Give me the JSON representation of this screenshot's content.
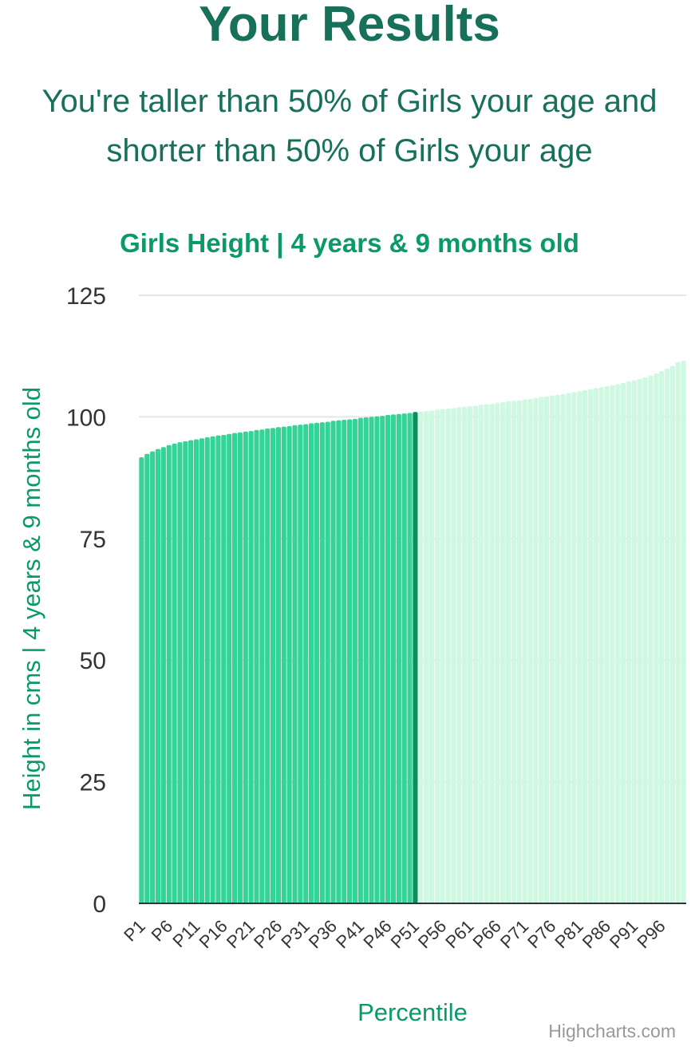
{
  "header": {
    "title": "Your Results",
    "summary": "You're taller than 50% of Girls your age and shorter than 50% of Girls your age"
  },
  "colors": {
    "title": "#17705a",
    "accent": "#0a9a6a",
    "below": "#35d398",
    "selected": "#0a8f5c",
    "above": "#cff8e2",
    "grid": "#e6e6e6",
    "baseline": "#333333"
  },
  "chart_data": {
    "type": "bar",
    "title": "Girls Height | 4 years & 9 months old",
    "xlabel": "Percentile",
    "ylabel": "Height in cms | 4 years & 9 months old",
    "ylim": [
      0,
      125
    ],
    "yticks": [
      0,
      25,
      50,
      75,
      100,
      125
    ],
    "grid": true,
    "selected_percentile": "P51",
    "categories": [
      "P1",
      "P2",
      "P3",
      "P4",
      "P5",
      "P6",
      "P7",
      "P8",
      "P9",
      "P10",
      "P11",
      "P12",
      "P13",
      "P14",
      "P15",
      "P16",
      "P17",
      "P18",
      "P19",
      "P20",
      "P21",
      "P22",
      "P23",
      "P24",
      "P25",
      "P26",
      "P27",
      "P28",
      "P29",
      "P30",
      "P31",
      "P32",
      "P33",
      "P34",
      "P35",
      "P36",
      "P37",
      "P38",
      "P39",
      "P40",
      "P41",
      "P42",
      "P43",
      "P44",
      "P45",
      "P46",
      "P47",
      "P48",
      "P49",
      "P50",
      "P51",
      "P52",
      "P53",
      "P54",
      "P55",
      "P56",
      "P57",
      "P58",
      "P59",
      "P60",
      "P61",
      "P62",
      "P63",
      "P64",
      "P65",
      "P66",
      "P67",
      "P68",
      "P69",
      "P70",
      "P71",
      "P72",
      "P73",
      "P74",
      "P75",
      "P76",
      "P77",
      "P78",
      "P79",
      "P80",
      "P81",
      "P82",
      "P83",
      "P84",
      "P85",
      "P86",
      "P87",
      "P88",
      "P89",
      "P90",
      "P91",
      "P92",
      "P93",
      "P94",
      "P95",
      "P96",
      "P97",
      "P98",
      "P99",
      "P100"
    ],
    "tick_labels": [
      "P1",
      "P6",
      "P11",
      "P16",
      "P21",
      "P26",
      "P31",
      "P36",
      "P41",
      "P46",
      "P51",
      "P56",
      "P61",
      "P66",
      "P71",
      "P76",
      "P81",
      "P86",
      "P91",
      "P96"
    ],
    "values": [
      91.7,
      92.4,
      92.9,
      93.4,
      93.8,
      94.2,
      94.5,
      94.8,
      95.0,
      95.2,
      95.4,
      95.6,
      95.8,
      96.0,
      96.2,
      96.3,
      96.5,
      96.7,
      96.8,
      97.0,
      97.1,
      97.3,
      97.4,
      97.6,
      97.7,
      97.9,
      98.0,
      98.1,
      98.3,
      98.4,
      98.5,
      98.7,
      98.8,
      98.9,
      99.0,
      99.2,
      99.3,
      99.4,
      99.5,
      99.6,
      99.8,
      99.9,
      100.0,
      100.1,
      100.2,
      100.4,
      100.5,
      100.6,
      100.7,
      100.8,
      101.0,
      101.1,
      101.2,
      101.3,
      101.5,
      101.6,
      101.7,
      101.8,
      102.0,
      102.1,
      102.2,
      102.3,
      102.5,
      102.6,
      102.7,
      102.9,
      103.0,
      103.2,
      103.3,
      103.4,
      103.6,
      103.7,
      103.9,
      104.1,
      104.2,
      104.4,
      104.5,
      104.7,
      104.9,
      105.1,
      105.3,
      105.5,
      105.7,
      105.9,
      106.1,
      106.3,
      106.5,
      106.7,
      107.0,
      107.3,
      107.5,
      107.8,
      108.1,
      108.5,
      108.9,
      109.4,
      109.9,
      110.5,
      111.3,
      111.5
    ]
  },
  "credit": "Highcharts.com"
}
